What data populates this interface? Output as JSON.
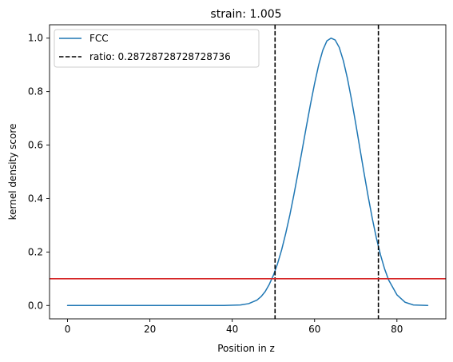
{
  "chart_data": {
    "type": "line",
    "title": "strain: 1.005",
    "xlabel": "Position in z",
    "ylabel": "kernel density score",
    "xlim": [
      -4.375,
      91.875
    ],
    "ylim": [
      -0.05,
      1.05
    ],
    "xticks": [
      0,
      20,
      40,
      60,
      80
    ],
    "xtick_labels": [
      "0",
      "20",
      "40",
      "60",
      "80"
    ],
    "yticks": [
      0.0,
      0.2,
      0.4,
      0.6,
      0.8,
      1.0
    ],
    "ytick_labels": [
      "0.0",
      "0.2",
      "0.4",
      "0.6",
      "0.8",
      "1.0"
    ],
    "grid": false,
    "legend_position": "upper-left",
    "series": [
      {
        "name": "FCC",
        "color": "#1f77b4",
        "style": "solid",
        "x": [
          0,
          10,
          20,
          30,
          38,
          42,
          44,
          46,
          47,
          48,
          49,
          50,
          51,
          52,
          53,
          54,
          55,
          56,
          57,
          58,
          59,
          60,
          61,
          62,
          63,
          64,
          65,
          66,
          67,
          68,
          69,
          70,
          71,
          72,
          73,
          74,
          75,
          76,
          77,
          78,
          80,
          82,
          84,
          87.5
        ],
        "y": [
          0.0,
          0.0,
          0.0,
          0.0,
          0.0,
          0.002,
          0.007,
          0.02,
          0.033,
          0.052,
          0.079,
          0.113,
          0.156,
          0.208,
          0.27,
          0.339,
          0.416,
          0.498,
          0.583,
          0.669,
          0.752,
          0.83,
          0.9,
          0.955,
          0.99,
          1.0,
          0.993,
          0.965,
          0.915,
          0.848,
          0.768,
          0.68,
          0.588,
          0.497,
          0.409,
          0.327,
          0.253,
          0.19,
          0.137,
          0.095,
          0.04,
          0.012,
          0.002,
          0.0
        ]
      }
    ],
    "vlines": [
      {
        "name": "ratio: 0.28728728728728736",
        "x": [
          50.4,
          75.5
        ],
        "color": "#000000",
        "style": "dashed"
      }
    ],
    "hline": {
      "y": 0.1,
      "color": "#d62728"
    }
  }
}
